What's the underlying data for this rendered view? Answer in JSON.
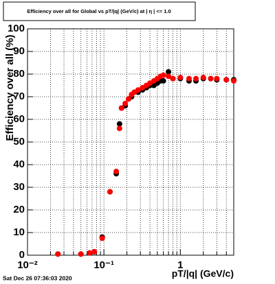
{
  "chart_data": {
    "type": "scatter",
    "title": "Efficiency over all for Global vs pT/|q| (GeV/c) at | η | <= 1.0",
    "x_label": "pT/|q| (GeV/c)",
    "y_label": "Efficiency over all (%)",
    "footer": "Sat Dec 26 07:36:03 2020",
    "xlog": true,
    "grid": true,
    "xlim": [
      0.01,
      5
    ],
    "ylim": [
      0,
      100
    ],
    "xticks": [
      {
        "value": 0.01,
        "label": "10⁻²"
      },
      {
        "value": 0.1,
        "label": "10⁻¹"
      },
      1
    ],
    "xminor_ticks": [
      0.02,
      0.03,
      0.04,
      0.05,
      0.06,
      0.07,
      0.08,
      0.09,
      0.2,
      0.3,
      0.4,
      0.5,
      0.6,
      0.7,
      0.8,
      0.9,
      2,
      3,
      4,
      5
    ],
    "yticks": [
      0,
      10,
      20,
      30,
      40,
      50,
      60,
      70,
      80,
      90,
      100
    ],
    "series": [
      {
        "color": "#000000",
        "x": [
          0.025,
          0.05,
          0.065,
          0.075,
          0.095,
          0.12,
          0.145,
          0.16,
          0.17,
          0.19,
          0.21,
          0.23,
          0.25,
          0.28,
          0.32,
          0.36,
          0.4,
          0.45,
          0.5,
          0.55,
          0.6,
          0.7,
          0.8,
          1.0,
          1.3,
          1.6,
          2,
          2.5,
          3,
          4,
          5
        ],
        "values": [
          0.5,
          0.5,
          1,
          1.5,
          8,
          28,
          36,
          58,
          65,
          66,
          69,
          70,
          72,
          72,
          73,
          74,
          75,
          75,
          76,
          77,
          77,
          81,
          78,
          78,
          77,
          77,
          78,
          78,
          77.5,
          77.5,
          77.5
        ]
      },
      {
        "color": "#ff0000",
        "x": [
          0.025,
          0.05,
          0.065,
          0.075,
          0.095,
          0.12,
          0.145,
          0.16,
          0.17,
          0.19,
          0.21,
          0.23,
          0.25,
          0.28,
          0.32,
          0.36,
          0.4,
          0.45,
          0.5,
          0.55,
          0.6,
          0.7,
          0.8,
          1.0,
          1.3,
          1.6,
          2,
          2.5,
          3,
          4,
          5
        ],
        "values": [
          0.5,
          0.5,
          1,
          1.5,
          7.5,
          28,
          37,
          56,
          65,
          67,
          69,
          71,
          72,
          73,
          74,
          75,
          76,
          77,
          78,
          79,
          79.5,
          79,
          78,
          78.5,
          78,
          78,
          78.5,
          78,
          78,
          77.5,
          77
        ]
      }
    ]
  }
}
